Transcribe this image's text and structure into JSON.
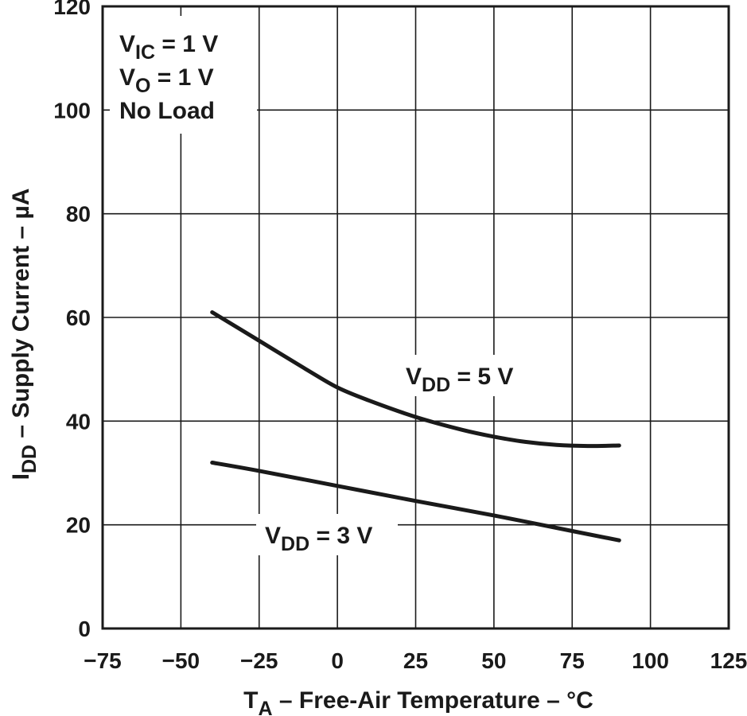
{
  "chart_data": {
    "type": "line",
    "title": "",
    "xlabel": {
      "main": "T",
      "sub": "A",
      "rest": " – Free-Air Temperature – °C"
    },
    "ylabel": {
      "main": "I",
      "sub": "DD",
      "rest": " – Supply Current – µA"
    },
    "xlim": [
      -75,
      125
    ],
    "ylim": [
      0,
      120
    ],
    "xticks": [
      -75,
      -50,
      -25,
      0,
      25,
      50,
      75,
      100,
      125
    ],
    "xtick_labels": [
      "−75",
      "−50",
      "−25",
      "0",
      "25",
      "50",
      "75",
      "100",
      "125"
    ],
    "yticks": [
      0,
      20,
      40,
      60,
      80,
      100,
      120
    ],
    "ytick_labels": [
      "0",
      "20",
      "40",
      "60",
      "80",
      "100",
      "120"
    ],
    "grid": true,
    "conditions": [
      {
        "main": "V",
        "sub": "IC",
        "rest": " = 1 V"
      },
      {
        "main": "V",
        "sub": "O",
        "rest": " = 1 V"
      },
      {
        "main": "No Load",
        "sub": "",
        "rest": ""
      }
    ],
    "series": [
      {
        "name": "VDD = 5 V",
        "label": {
          "main": "V",
          "sub": "DD",
          "rest": " = 5 V"
        },
        "x": [
          -40,
          -25,
          -10,
          0,
          10,
          25,
          40,
          50,
          60,
          70,
          80,
          90
        ],
        "y": [
          61,
          55.5,
          50,
          46.5,
          44,
          40.8,
          38.3,
          37,
          36,
          35.4,
          35.2,
          35.3
        ]
      },
      {
        "name": "VDD = 3 V",
        "label": {
          "main": "V",
          "sub": "DD",
          "rest": " = 3 V"
        },
        "x": [
          -40,
          -25,
          0,
          25,
          50,
          75,
          90
        ],
        "y": [
          32,
          30.4,
          27.5,
          24.6,
          21.8,
          18.8,
          17
        ]
      }
    ]
  }
}
